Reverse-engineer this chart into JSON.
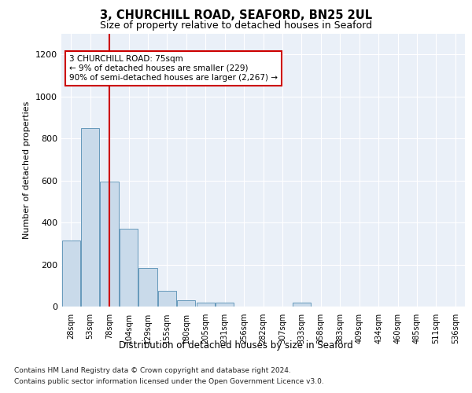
{
  "title": "3, CHURCHILL ROAD, SEAFORD, BN25 2UL",
  "subtitle": "Size of property relative to detached houses in Seaford",
  "xlabel": "Distribution of detached houses by size in Seaford",
  "ylabel": "Number of detached properties",
  "footnote1": "Contains HM Land Registry data © Crown copyright and database right 2024.",
  "footnote2": "Contains public sector information licensed under the Open Government Licence v3.0.",
  "bar_color": "#c9daea",
  "bar_edge_color": "#6699bb",
  "annotation_text": "3 CHURCHILL ROAD: 75sqm\n← 9% of detached houses are smaller (229)\n90% of semi-detached houses are larger (2,267) →",
  "annotation_box_color": "#ffffff",
  "annotation_box_edge": "#cc0000",
  "vline_color": "#cc0000",
  "vline_x": 2,
  "ylim": [
    0,
    1300
  ],
  "background_color": "#eaf0f8",
  "categories": [
    "28sqm",
    "53sqm",
    "78sqm",
    "104sqm",
    "129sqm",
    "155sqm",
    "180sqm",
    "205sqm",
    "231sqm",
    "256sqm",
    "282sqm",
    "307sqm",
    "333sqm",
    "358sqm",
    "383sqm",
    "409sqm",
    "434sqm",
    "460sqm",
    "485sqm",
    "511sqm",
    "536sqm"
  ],
  "values": [
    315,
    850,
    595,
    370,
    185,
    75,
    30,
    18,
    18,
    0,
    0,
    0,
    18,
    0,
    0,
    0,
    0,
    0,
    0,
    0,
    0
  ],
  "yticks": [
    0,
    200,
    400,
    600,
    800,
    1000,
    1200
  ],
  "grid_color": "#ffffff",
  "tick_label_fontsize": 7,
  "ylabel_fontsize": 8,
  "xlabel_fontsize": 8.5,
  "title_fontsize": 10.5,
  "subtitle_fontsize": 9,
  "footnote_fontsize": 6.5
}
